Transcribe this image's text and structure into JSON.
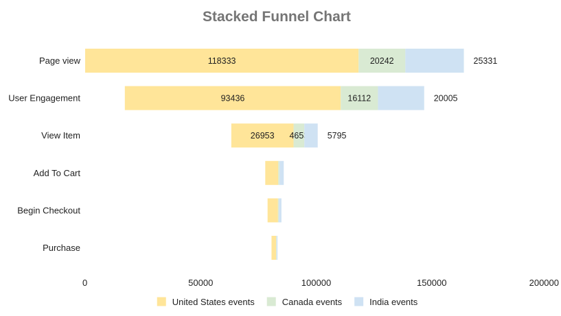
{
  "chart_data": {
    "type": "bar",
    "subtype": "stacked-funnel",
    "orientation": "horizontal",
    "title": "Stacked Funnel Chart",
    "xlim": [
      0,
      200000
    ],
    "x_ticks": [
      "0",
      "50000",
      "100000",
      "150000",
      "200000"
    ],
    "categories": [
      "Page view",
      "User Engagement",
      "View Item",
      "Add To Cart",
      "Begin Checkout",
      "Purchase"
    ],
    "series": [
      {
        "name": "United States events",
        "color": "#ffe599",
        "values": [
          118333,
          93436,
          26953,
          5600,
          4500,
          2000
        ]
      },
      {
        "name": "Canada events",
        "color": "#d9ead3",
        "values": [
          20242,
          16112,
          4653,
          600,
          400,
          200
        ]
      },
      {
        "name": "India events",
        "color": "#cfe2f3",
        "values": [
          25331,
          20005,
          5795,
          1800,
          1100,
          400
        ]
      }
    ],
    "data_labels": [
      {
        "inside": [
          "118333",
          "20242"
        ],
        "outside": "25331"
      },
      {
        "inside": [
          "93436",
          "16112"
        ],
        "outside": "20005"
      },
      {
        "inside": [
          "26953",
          "4653"
        ],
        "outside": "5795"
      },
      {
        "inside": [],
        "outside": ""
      },
      {
        "inside": [],
        "outside": ""
      },
      {
        "inside": [],
        "outside": ""
      }
    ],
    "legend": {
      "position": "bottom"
    },
    "grid": false
  }
}
